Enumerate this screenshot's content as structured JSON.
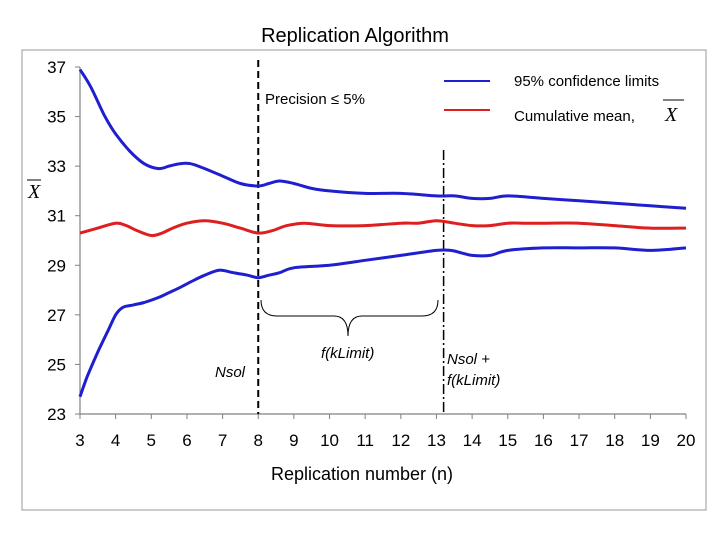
{
  "chart_data": {
    "type": "line",
    "title": "Replication Algorithm",
    "xlabel": "Replication number (n)",
    "ylabel": "X",
    "xlim": [
      3,
      20
    ],
    "ylim": [
      23,
      37
    ],
    "x_ticks": [
      "3",
      "4",
      "5",
      "6",
      "7",
      "8",
      "9",
      "10",
      "11",
      "12",
      "13",
      "14",
      "15",
      "16",
      "17",
      "18",
      "19",
      "20"
    ],
    "y_ticks": [
      "23",
      "25",
      "27",
      "29",
      "31",
      "33",
      "35",
      "37"
    ],
    "grid": false,
    "legend_position": "top-right",
    "series": [
      {
        "name": "95% confidence limits",
        "color": "#1f1fd0",
        "x": [
          3,
          3.3,
          3.7,
          4,
          4.4,
          4.8,
          5.2,
          5.5,
          5.8,
          6.1,
          6.5,
          7,
          7.5,
          8,
          8.3,
          8.6,
          9,
          9.5,
          10,
          11,
          12,
          13,
          13.5,
          14,
          14.5,
          15,
          16,
          17,
          18,
          19,
          20
        ],
        "y": [
          36.9,
          36.2,
          35,
          34.3,
          33.6,
          33.1,
          32.9,
          33,
          33.1,
          33.1,
          32.9,
          32.6,
          32.3,
          32.2,
          32.3,
          32.4,
          32.3,
          32.1,
          32,
          31.9,
          31.9,
          31.8,
          31.8,
          31.7,
          31.7,
          31.8,
          31.7,
          31.6,
          31.5,
          31.4,
          31.3
        ]
      },
      {
        "name": "Cumulative mean",
        "color": "#dd1f1f",
        "x": [
          3,
          3.5,
          4,
          4.3,
          4.6,
          5,
          5.3,
          5.6,
          6,
          6.5,
          7,
          7.5,
          8,
          8.4,
          8.8,
          9.3,
          10,
          11,
          12,
          12.5,
          13,
          13.5,
          14,
          14.5,
          15,
          15.5,
          16,
          17,
          18,
          19,
          20
        ],
        "y": [
          30.3,
          30.5,
          30.7,
          30.6,
          30.4,
          30.2,
          30.3,
          30.5,
          30.7,
          30.8,
          30.7,
          30.5,
          30.3,
          30.4,
          30.6,
          30.7,
          30.6,
          30.6,
          30.7,
          30.7,
          30.8,
          30.7,
          30.6,
          30.6,
          30.7,
          30.7,
          30.7,
          30.7,
          30.6,
          30.5,
          30.5
        ]
      },
      {
        "name": "95% confidence limits",
        "color": "#1f1fd0",
        "x": [
          3,
          3.2,
          3.5,
          3.8,
          4,
          4.2,
          4.5,
          4.8,
          5.2,
          5.5,
          5.8,
          6.2,
          6.5,
          6.9,
          7.3,
          7.7,
          8,
          8.3,
          8.6,
          9,
          10,
          11,
          12,
          13,
          13.4,
          13.7,
          14,
          14.5,
          15,
          16,
          17,
          18,
          19,
          20
        ],
        "y": [
          23.7,
          24.5,
          25.5,
          26.4,
          27,
          27.3,
          27.4,
          27.5,
          27.7,
          27.9,
          28.1,
          28.4,
          28.6,
          28.8,
          28.7,
          28.6,
          28.5,
          28.6,
          28.7,
          28.9,
          29,
          29.2,
          29.4,
          29.6,
          29.6,
          29.5,
          29.4,
          29.4,
          29.6,
          29.7,
          29.7,
          29.7,
          29.6,
          29.7
        ]
      }
    ],
    "legend": [
      {
        "label": "95% confidence limits",
        "color": "#1f1fd0"
      },
      {
        "label": "Cumulative mean,",
        "symbol": "X",
        "color": "#dd1f1f"
      }
    ],
    "annotations": {
      "precision": "Precision ≤ 5%",
      "nsol": "Nsol",
      "fklimit": "f(kLimit)",
      "nsol_plus_line1": "Nsol +",
      "nsol_plus_line2": "f(kLimit)",
      "vline_dashed_x": 8,
      "vline_dashdot_x": 13.2
    }
  }
}
